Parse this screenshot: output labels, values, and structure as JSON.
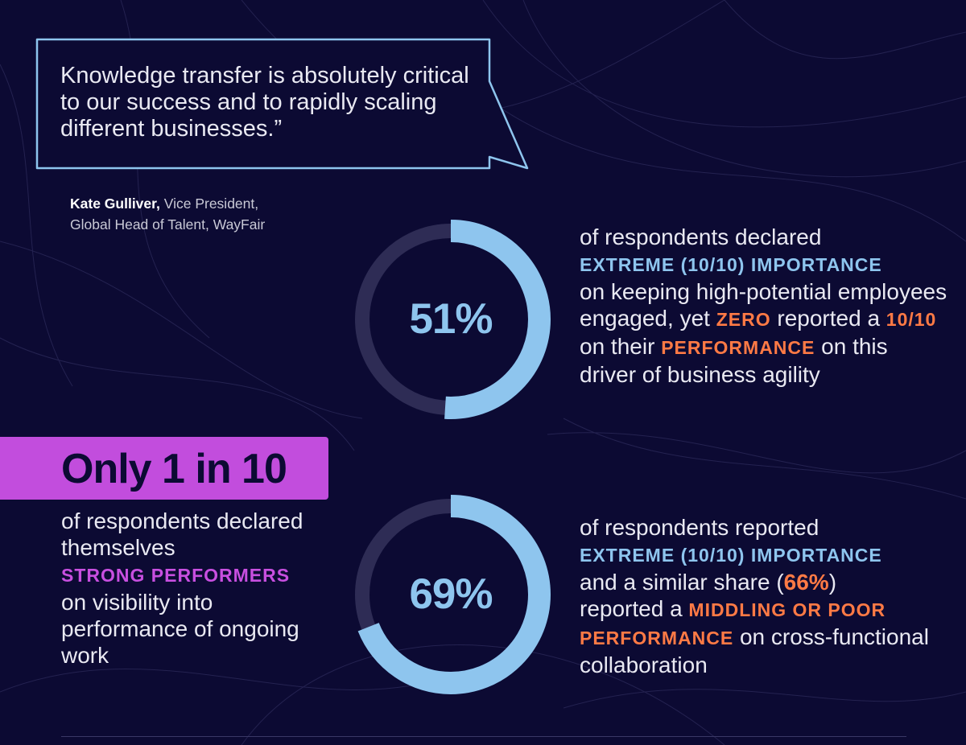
{
  "quote": {
    "text": "Knowledge transfer is absolutely critical to our success and to rapidly scaling different businesses.”",
    "author_name": "Kate Gulliver,",
    "author_title_line1": "Vice President,",
    "author_title_line2": "Global Head of Talent, WayFair"
  },
  "stat_1": {
    "percent_label": "51%",
    "percent_value": 51,
    "text_a": "of respondents declared",
    "highlight_a": "EXTREME (10/10) IMPORTANCE",
    "text_b": "on keeping high-potential employees engaged, yet",
    "highlight_b": "ZERO",
    "text_c": "reported a",
    "highlight_c": "10/10",
    "text_d": "on their",
    "highlight_d": "PERFORMANCE",
    "text_e": "on this driver of business agility"
  },
  "banner": {
    "title": "Only 1 in 10",
    "text_a": "of respondents declared themselves",
    "highlight": "STRONG PERFORMERS",
    "text_b": "on visibility into performance of ongoing work"
  },
  "stat_2": {
    "percent_label": "69%",
    "percent_value": 69,
    "text_a": "of respondents reported",
    "highlight_a": "EXTREME (10/10) IMPORTANCE",
    "text_b": "and a similar share (",
    "highlight_b": "66%",
    "text_c": ")",
    "text_d": "reported a",
    "highlight_c": "MIDDLING OR POOR PERFORMANCE",
    "text_e": "on cross-functional collaboration"
  },
  "colors": {
    "background": "#0c0a33",
    "ring_fill": "#8ec5ee",
    "ring_track": "#2e2c55",
    "accent_orange": "#ff7a45",
    "accent_purple": "#c24ddd"
  }
}
